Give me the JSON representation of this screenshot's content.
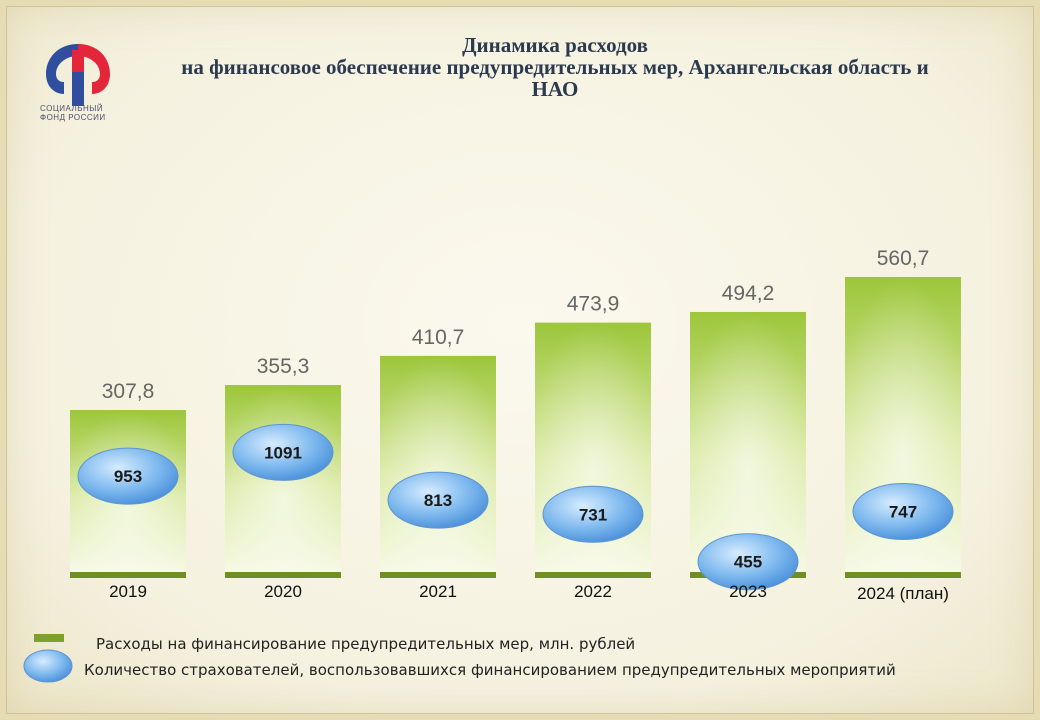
{
  "logo": {
    "line1": "СОЦИАЛЬНЫЙ",
    "line2": "ФОНД РОССИИ"
  },
  "title_lines": [
    "Динамика расходов",
    "на финансовое обеспечение предупредительных мер, Архангельская область и",
    "НАО"
  ],
  "chart_data": {
    "type": "bar",
    "title": "Динамика расходов на финансовое обеспечение предупредительных мер, Архангельская область и НАО",
    "categories": [
      "2019",
      "2020",
      "2021",
      "2022",
      "2023",
      "2024 (план)"
    ],
    "series": [
      {
        "name": "Расходы на финансирование предупредительных мер, млн. рублей",
        "values": [
          307.8,
          355.3,
          410.7,
          473.9,
          494.2,
          560.7
        ],
        "labels": [
          "307,8",
          "355,3",
          "410,7",
          "473,9",
          "494,2",
          "560,7"
        ],
        "color": "#9cc63a"
      },
      {
        "name": "Количество страхователей, воспользовавшихся финансированием предупредительных мероприятий",
        "values": [
          953,
          1091,
          813,
          731,
          455,
          747
        ],
        "labels": [
          "953",
          "1091",
          "813",
          "731",
          "455",
          "747"
        ],
        "color": "#6aa8e6"
      }
    ],
    "legend": "bottom-left",
    "grid": false
  },
  "colors": {
    "bar_top": "#9cc63a",
    "bar_bottom": "#f6f9e4",
    "bar_base": "#6f8f24",
    "ellipse": "#6aa8e6",
    "value_label": "#666666"
  }
}
